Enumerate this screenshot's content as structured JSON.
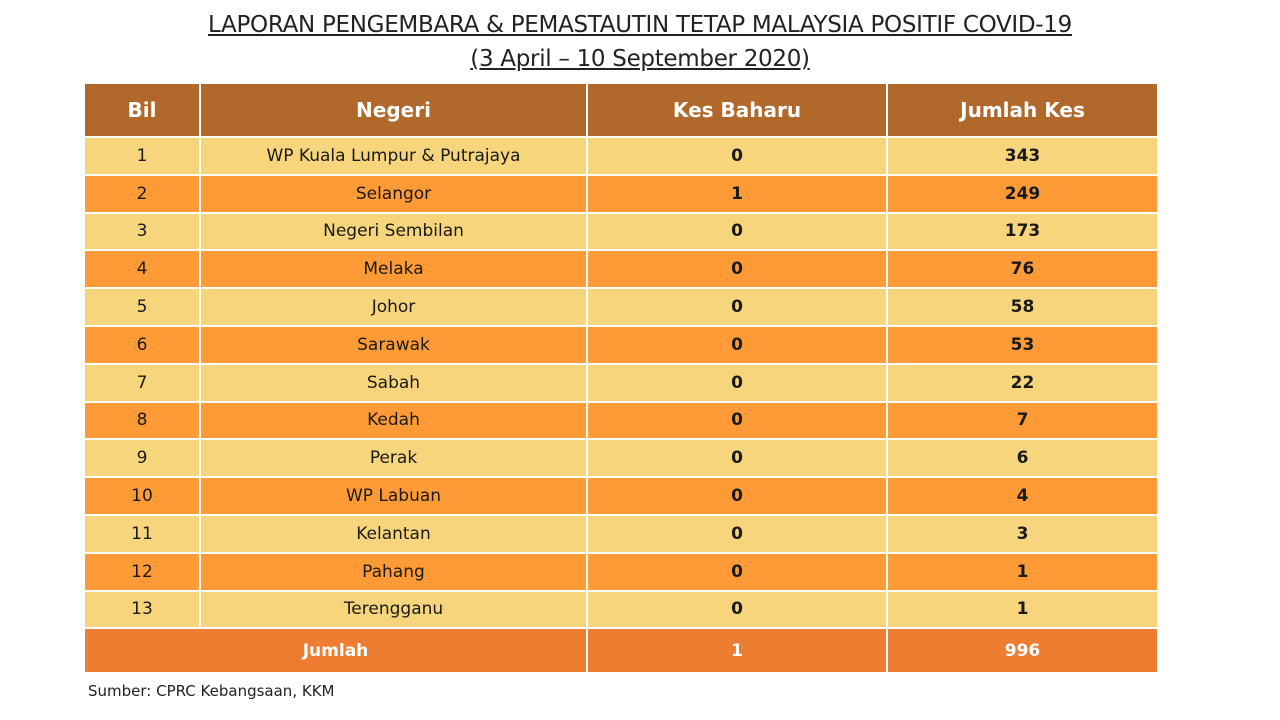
{
  "title_line1": "LAPORAN PENGEMBARA & PEMASTAUTIN TETAP MALAYSIA POSITIF COVID-19",
  "title_line2": "(3 April –  10 September 2020)",
  "colors": {
    "header": "#B0692A",
    "row_light": "#F6D57C",
    "row_dark": "#FF9B36",
    "total": "#ED7D31"
  },
  "headers": [
    "Bil",
    "Negeri",
    "Kes Baharu",
    "Jumlah Kes"
  ],
  "rows": [
    [
      "1",
      "WP Kuala Lumpur & Putrajaya",
      "0",
      "343"
    ],
    [
      "2",
      "Selangor",
      "1",
      "249"
    ],
    [
      "3",
      "Negeri Sembilan",
      "0",
      "173"
    ],
    [
      "4",
      "Melaka",
      "0",
      "76"
    ],
    [
      "5",
      "Johor",
      "0",
      "58"
    ],
    [
      "6",
      "Sarawak",
      "0",
      "53"
    ],
    [
      "7",
      "Sabah",
      "0",
      "22"
    ],
    [
      "8",
      "Kedah",
      "0",
      "7"
    ],
    [
      "9",
      "Perak",
      "0",
      "6"
    ],
    [
      "10",
      "WP Labuan",
      "0",
      "4"
    ],
    [
      "11",
      "Kelantan",
      "0",
      "3"
    ],
    [
      "12",
      "Pahang",
      "0",
      "1"
    ],
    [
      "13",
      "Terengganu",
      "0",
      "1"
    ]
  ],
  "total": {
    "label": "Jumlah",
    "kes_baharu": "1",
    "jumlah_kes": "996"
  },
  "source": "Sumber: CPRC Kebangsaan, KKM"
}
